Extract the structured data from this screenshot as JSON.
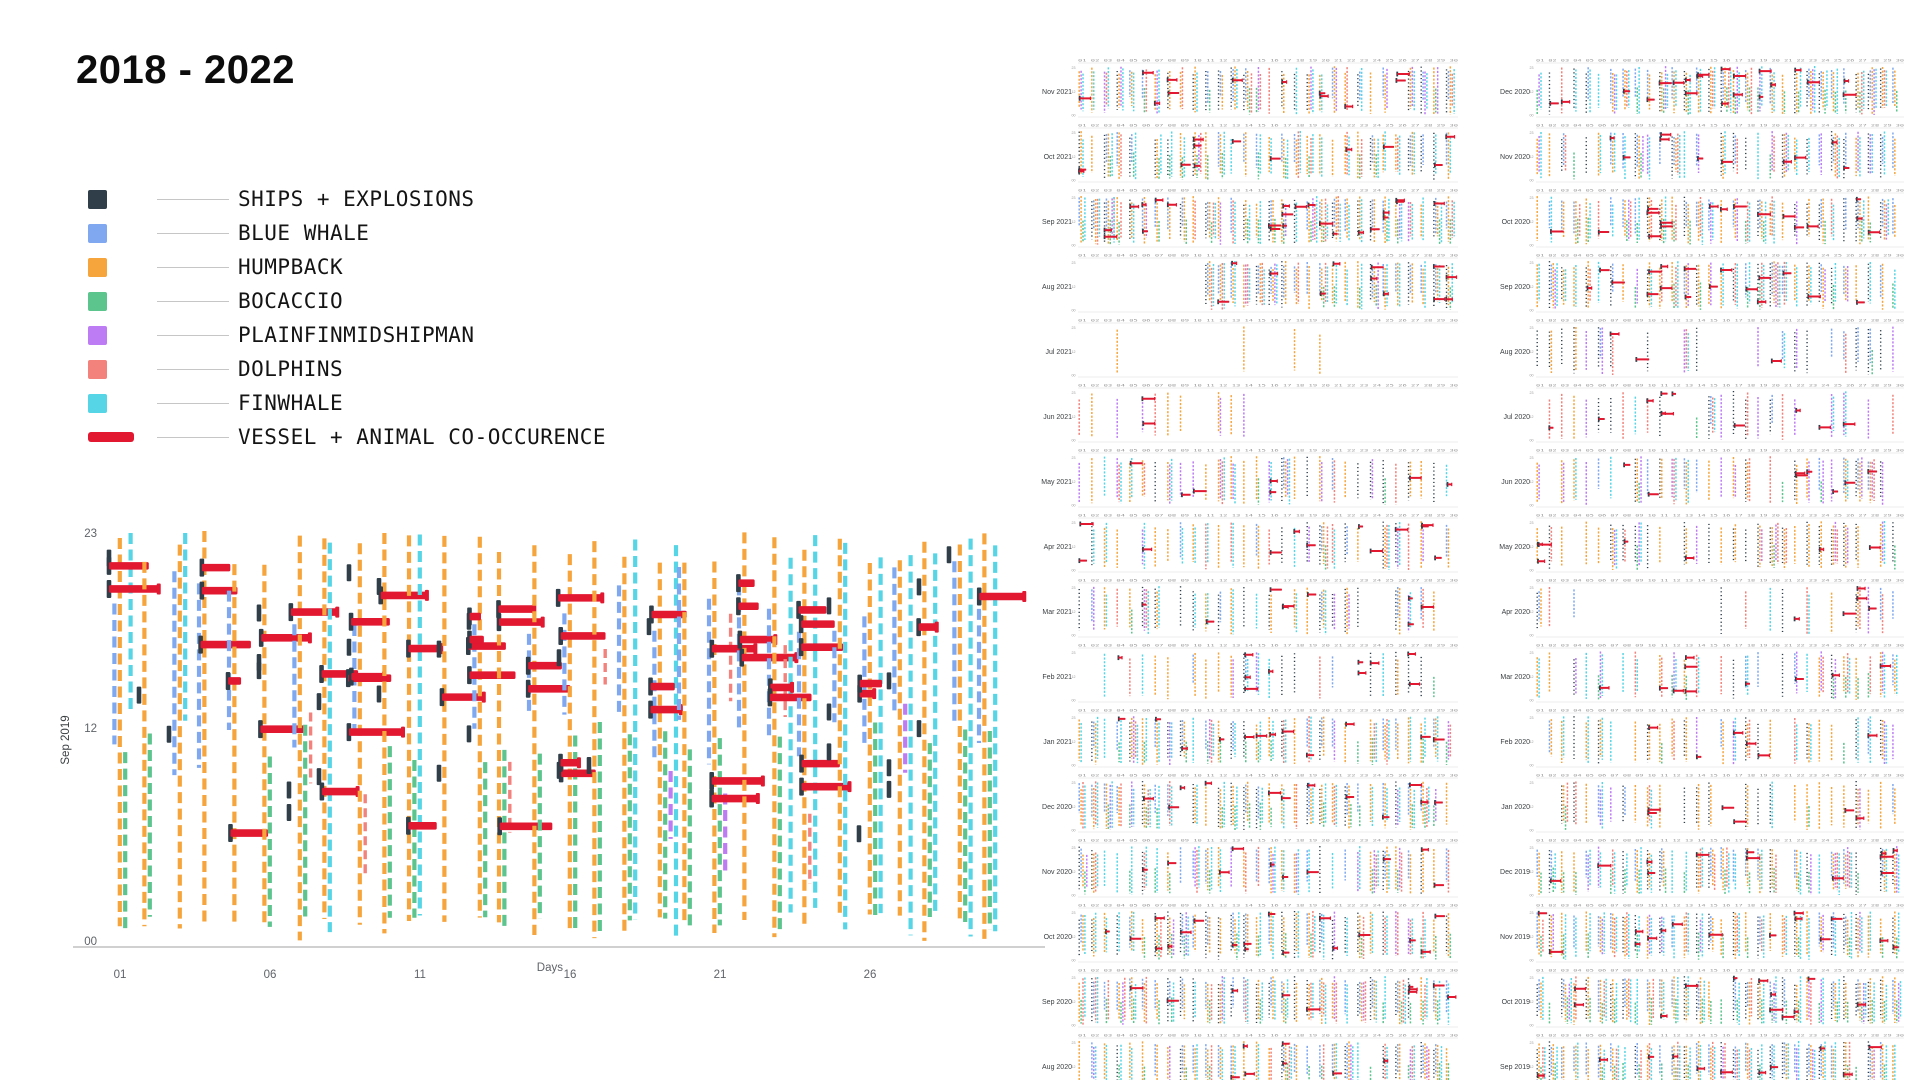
{
  "title": "2018 - 2022",
  "colors": {
    "dark": "#2f3e49",
    "blue": "#7fa8f0",
    "orange": "#f6a53d",
    "green": "#5cc48d",
    "purple": "#bd7cf4",
    "pink": "#f2827b",
    "cyan": "#55d5e6",
    "red": "#e21730",
    "leader_line": "#c6c6c6",
    "axis_line": "#b3b3b3",
    "tick_text": "#5f6368",
    "mini_tick_text": "#9a9a9a",
    "mini_label_text": "#3c4043"
  },
  "legend": {
    "items": [
      {
        "label": "SHIPS + EXPLOSIONS",
        "color": "dark",
        "shape": "square"
      },
      {
        "label": "BLUE WHALE",
        "color": "blue",
        "shape": "square"
      },
      {
        "label": "HUMPBACK",
        "color": "orange",
        "shape": "square"
      },
      {
        "label": "BOCACCIO",
        "color": "green",
        "shape": "square"
      },
      {
        "label": "PLAINFINMIDSHIPMAN",
        "color": "purple",
        "shape": "square"
      },
      {
        "label": "DOLPHINS",
        "color": "pink",
        "shape": "square"
      },
      {
        "label": "FINWHALE",
        "color": "cyan",
        "shape": "square"
      },
      {
        "label": "VESSEL + ANIMAL CO-OCCURENCE",
        "color": "red",
        "shape": "bar"
      }
    ]
  },
  "chart_data": {
    "type": "event_raster_small_multiples",
    "description": "Acoustic detections per hour (y, 00-23) per day (x, 01-30) per month; colored dashed columns = species/ship sound events; red horizontal bars anchored on dark ticks = vessel + animal co-occurrence.",
    "series_order": [
      "dark",
      "blue",
      "orange",
      "green",
      "purple",
      "pink",
      "cyan"
    ],
    "main": {
      "month_label": "Sep 2019",
      "x_axis_label": "Days",
      "x_ticks": [
        "01",
        "06",
        "11",
        "16",
        "21",
        "26"
      ],
      "x_tick_days": [
        1,
        6,
        11,
        16,
        21,
        26
      ],
      "y_ticks": [
        "23",
        "12",
        "00"
      ],
      "y_tick_hours": [
        23,
        12,
        0
      ],
      "days": 30,
      "hours": 24,
      "seed": 7,
      "profile": {
        "orange": {
          "p": 0.93
        },
        "blue": {
          "p": 0.7
        },
        "green": {
          "p": 0.75
        },
        "cyan": {
          "p_base": 0.3,
          "p_slope": 0.55
        },
        "pink": {
          "p": 0.33
        },
        "purple": {
          "p": 0.06
        },
        "dark": {
          "p": 0.5
        },
        "red_events": {
          "rate": 3.6,
          "h_bands": [
            [
              13,
              20
            ],
            [
              6,
              12
            ]
          ],
          "width_min": 12,
          "width_max": 55
        }
      }
    },
    "small_multiples": {
      "y_ticks": [
        "23",
        "12",
        "00"
      ],
      "day_ticks": [
        "01",
        "02",
        "03",
        "04",
        "05",
        "06",
        "07",
        "08",
        "09",
        "10",
        "11",
        "12",
        "13",
        "14",
        "15",
        "16",
        "17",
        "18",
        "19",
        "20",
        "21",
        "22",
        "23",
        "24",
        "25",
        "26",
        "27",
        "28",
        "29",
        "30"
      ],
      "default_weights": {
        "dark": 0.55,
        "blue": 0.65,
        "orange": 0.95,
        "green": 0.6,
        "purple": 0.25,
        "pink": 0.35,
        "cyan": 0.85
      },
      "columns": [
        {
          "charts": [
            {
              "label": "Nov 2021",
              "seed": 11,
              "density": 0.7,
              "red": 0.45,
              "w": {
                "purple": 0.5,
                "green": 0.3
              }
            },
            {
              "label": "Oct 2021",
              "seed": 12,
              "density": 0.78,
              "red": 0.5,
              "w": {
                "green": 0.35
              }
            },
            {
              "label": "Sep 2021",
              "seed": 13,
              "density": 0.88,
              "red": 0.6,
              "w": {}
            },
            {
              "label": "Aug 2021",
              "seed": 14,
              "density": 0.85,
              "red": 0.55,
              "day_start": 11
            },
            {
              "label": "Jul 2021",
              "seed": 15,
              "density": 0.04,
              "red": 0.0,
              "w": {
                "cyan": 0.3,
                "blue": 0.3
              }
            },
            {
              "label": "Jun 2021",
              "seed": 16,
              "density": 0.3,
              "red": 0.12,
              "day_end": 14,
              "w": {
                "orange": 1,
                "purple": 0.9,
                "cyan": 0.15,
                "blue": 0.2,
                "green": 0.1,
                "pink": 0.2,
                "dark": 0.5
              }
            },
            {
              "label": "May 2021",
              "seed": 17,
              "density": 0.45,
              "red": 0.25,
              "w": {
                "orange": 1,
                "purple": 0.6,
                "cyan": 0.5,
                "green": 0.2,
                "blue": 0.3
              }
            },
            {
              "label": "Apr 2021",
              "seed": 18,
              "density": 0.5,
              "red": 0.35,
              "w": {
                "orange": 1,
                "cyan": 0.6,
                "green": 0.2,
                "blue": 0.3,
                "purple": 0.3
              }
            },
            {
              "label": "Mar 2021",
              "seed": 19,
              "density": 0.42,
              "red": 0.35,
              "w": {
                "cyan": 0.9,
                "orange": 0.5,
                "dark": 0.8,
                "green": 0.2,
                "blue": 0.3
              }
            },
            {
              "label": "Feb 2021",
              "seed": 20,
              "density": 0.38,
              "red": 0.3,
              "w": {
                "orange": 0.9,
                "cyan": 0.7,
                "blue": 0.4,
                "green": 0.15
              }
            },
            {
              "label": "Jan 2021",
              "seed": 21,
              "density": 0.68,
              "red": 0.4
            },
            {
              "label": "Dec 2020",
              "seed": 22,
              "density": 0.75,
              "red": 0.45
            },
            {
              "label": "Nov 2020",
              "seed": 23,
              "density": 0.55,
              "red": 0.3,
              "w": {
                "cyan": 1,
                "blue": 0.8,
                "green": 0.3
              }
            },
            {
              "label": "Oct 2020",
              "seed": 24,
              "density": 0.78,
              "red": 0.45
            },
            {
              "label": "Sep 2020",
              "seed": 25,
              "density": 0.78,
              "red": 0.4
            },
            {
              "label": "Aug 2020",
              "seed": 26,
              "density": 0.7,
              "red": 0.35
            }
          ]
        },
        {
          "charts": [
            {
              "label": "Dec 2020",
              "seed": 31,
              "density": 0.78,
              "red": 0.5
            },
            {
              "label": "Nov 2020",
              "seed": 32,
              "density": 0.5,
              "red": 0.3,
              "w": {
                "cyan": 1,
                "blue": 0.7,
                "purple": 0.5,
                "green": 0.2
              }
            },
            {
              "label": "Oct 2020",
              "seed": 33,
              "density": 0.75,
              "red": 0.45
            },
            {
              "label": "Sep 2020",
              "seed": 34,
              "density": 0.68,
              "red": 0.4,
              "w": {
                "cyan": 1,
                "orange": 0.9,
                "green": 0.3
              }
            },
            {
              "label": "Aug 2020",
              "seed": 35,
              "density": 0.3,
              "red": 0.08,
              "w": {
                "dark": 1,
                "blue": 0.9,
                "purple": 0.7,
                "orange": 0.2,
                "cyan": 0.3,
                "green": 0.1,
                "pink": 0.2
              }
            },
            {
              "label": "Jul 2020",
              "seed": 36,
              "density": 0.32,
              "red": 0.25,
              "w": {
                "dark": 1,
                "purple": 0.8,
                "pink": 0.5,
                "orange": 0.3,
                "blue": 0.3,
                "cyan": 0.2,
                "green": 0.1
              }
            },
            {
              "label": "Jun 2020",
              "seed": 37,
              "density": 0.45,
              "red": 0.28,
              "w": {
                "orange": 1,
                "purple": 0.8,
                "pink": 0.4,
                "cyan": 0.3,
                "green": 0.2,
                "blue": 0.3
              }
            },
            {
              "label": "May 2020",
              "seed": 38,
              "density": 0.45,
              "red": 0.28,
              "w": {
                "orange": 1,
                "dark": 0.9,
                "purple": 0.4,
                "cyan": 0.3,
                "blue": 0.3,
                "green": 0.2
              }
            },
            {
              "label": "Apr 2020",
              "seed": 39,
              "density": 0.35,
              "red": 0.22,
              "gap": [
                5,
                15
              ],
              "w": {
                "orange": 0.9,
                "cyan": 0.8,
                "pink": 0.3,
                "blue": 0.3,
                "green": 0.2
              }
            },
            {
              "label": "Mar 2020",
              "seed": 40,
              "density": 0.38,
              "red": 0.25,
              "w": {
                "cyan": 0.9,
                "orange": 0.6,
                "dark": 0.6,
                "pink": 0.4,
                "blue": 0.3
              }
            },
            {
              "label": "Feb 2020",
              "seed": 41,
              "density": 0.42,
              "red": 0.18,
              "w": {
                "orange": 1,
                "cyan": 0.8,
                "blue": 0.3,
                "green": 0.2
              }
            },
            {
              "label": "Jan 2020",
              "seed": 42,
              "density": 0.42,
              "red": 0.18,
              "w": {
                "orange": 1,
                "cyan": 0.4,
                "blue": 0.3,
                "green": 0.3
              }
            },
            {
              "label": "Dec 2019",
              "seed": 43,
              "density": 0.75,
              "red": 0.45
            },
            {
              "label": "Nov 2019",
              "seed": 44,
              "density": 0.75,
              "red": 0.45
            },
            {
              "label": "Oct 2019",
              "seed": 45,
              "density": 0.8,
              "red": 0.45,
              "w": {
                "green": 0.9,
                "cyan": 1
              }
            },
            {
              "label": "Sep 2019",
              "seed": 46,
              "density": 0.8,
              "red": 0.35
            }
          ]
        }
      ]
    }
  }
}
